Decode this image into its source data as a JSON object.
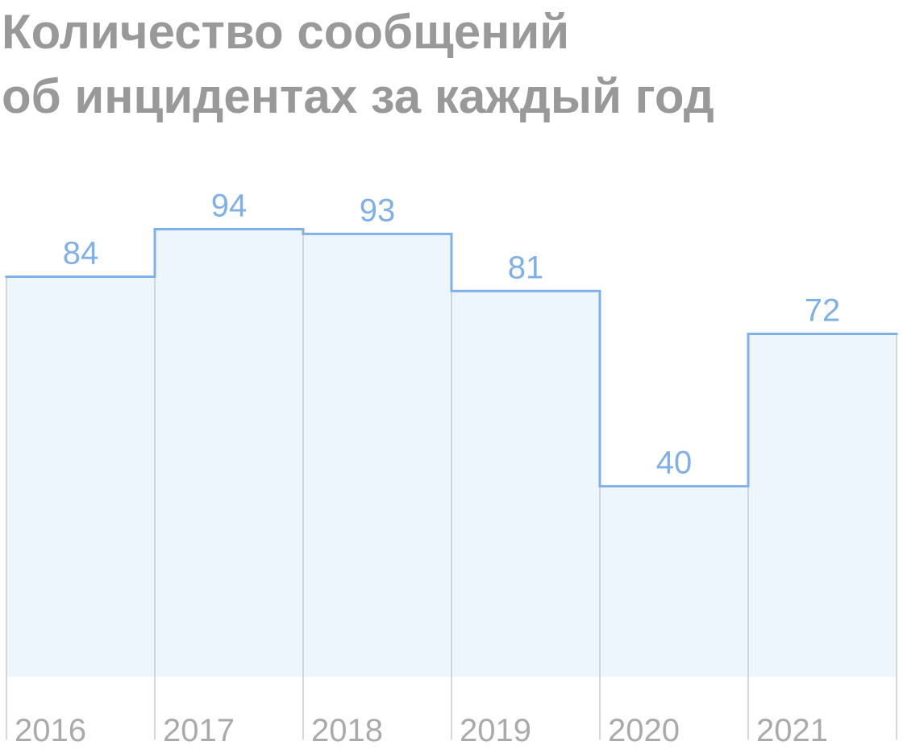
{
  "chart_data": {
    "type": "step",
    "title": [
      "Количество сообщений",
      "об инцидентах за каждый год"
    ],
    "categories": [
      "2016",
      "2017",
      "2018",
      "2019",
      "2020",
      "2021"
    ],
    "values": [
      84,
      94,
      93,
      81,
      40,
      72
    ],
    "color": "#7fb0e8",
    "fill": "#eef6fd",
    "ylim": [
      0,
      100
    ]
  }
}
